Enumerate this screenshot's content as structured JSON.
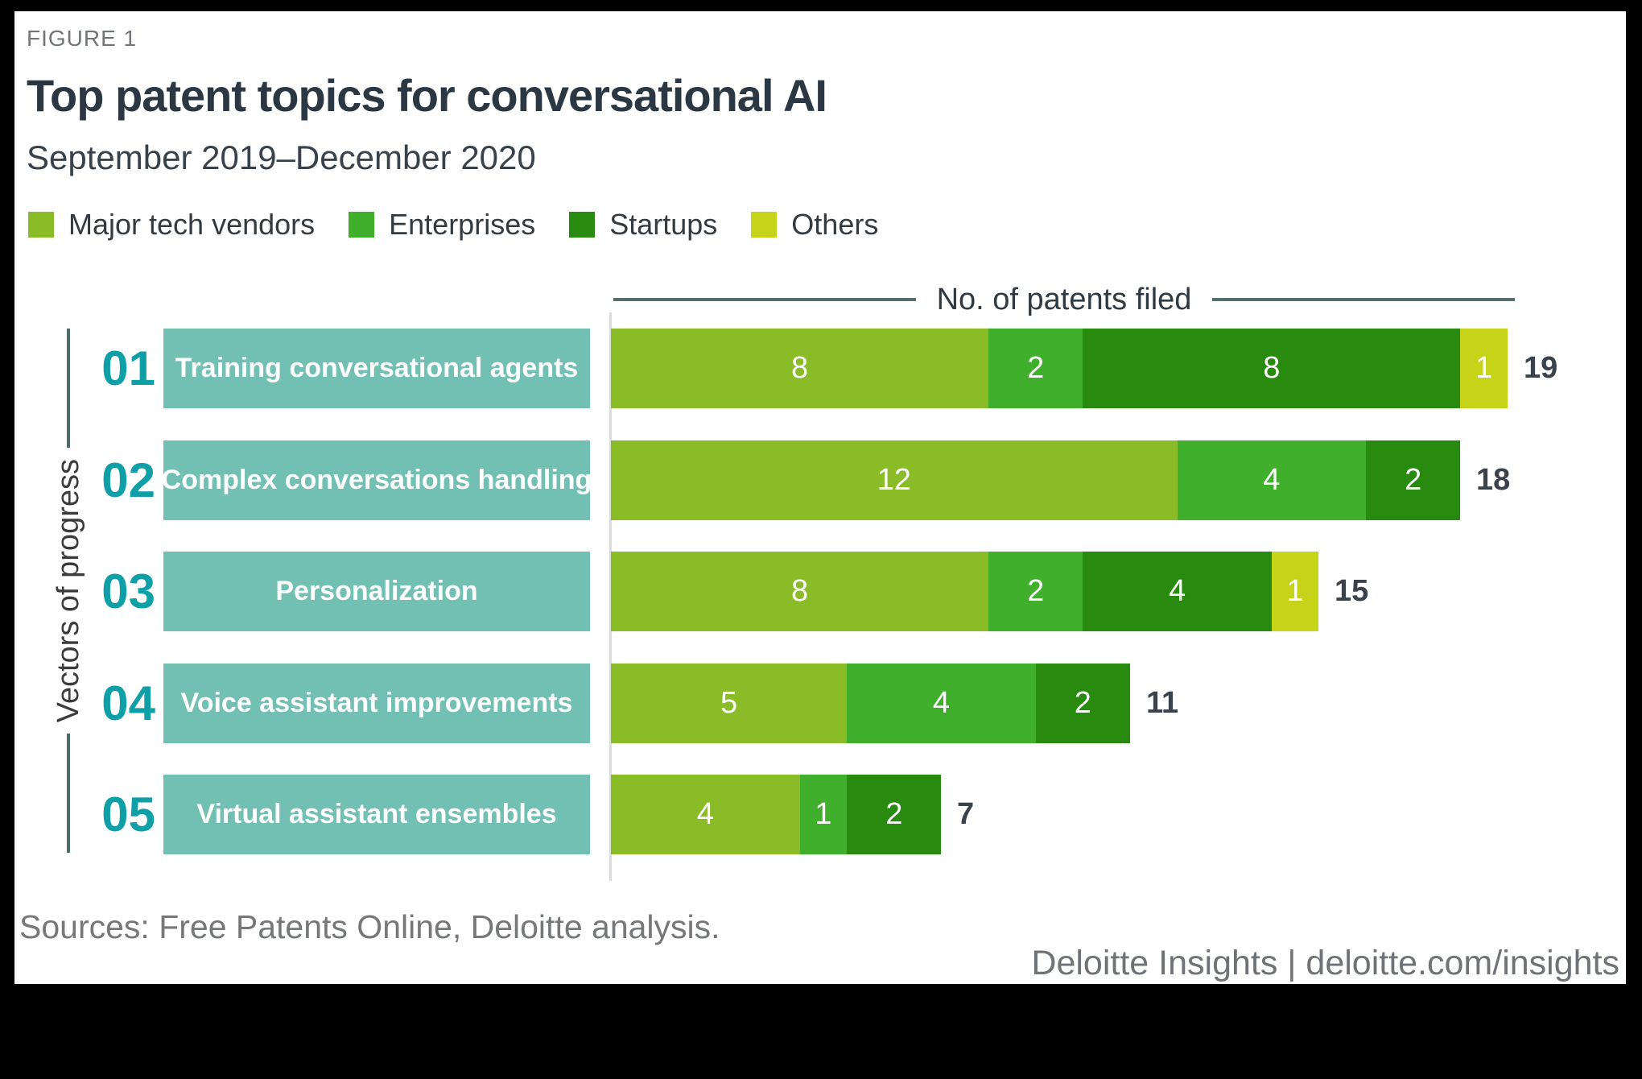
{
  "header": {
    "figure_label": "FIGURE 1",
    "title": "Top patent topics for conversational AI",
    "subtitle": "September 2019–December 2020"
  },
  "colors": {
    "major_tech_vendors": "#89bc27",
    "enterprises": "#3faf2c",
    "startups": "#288a0e",
    "others": "#c5d418",
    "category_box_teal": "#71c0b3",
    "rank_number_teal": "#0e9fa7",
    "rail_line": "#4e6c6a",
    "title_text": "#2b3843"
  },
  "chart_data": {
    "type": "bar",
    "orientation": "horizontal",
    "stacked": true,
    "axis_header": "No. of patents filed",
    "ylabel": "Vectors of progress",
    "legend": [
      {
        "label": "Major tech vendors",
        "color": "#89bc27"
      },
      {
        "label": "Enterprises",
        "color": "#3faf2c"
      },
      {
        "label": "Startups",
        "color": "#288a0e"
      },
      {
        "label": "Others",
        "color": "#c5d418"
      }
    ],
    "categories": [
      {
        "rank": "01",
        "label": "Training conversational agents"
      },
      {
        "rank": "02",
        "label": "Complex conversations handling"
      },
      {
        "rank": "03",
        "label": "Personalization"
      },
      {
        "rank": "04",
        "label": "Voice assistant improvements"
      },
      {
        "rank": "05",
        "label": "Virtual assistant ensembles"
      }
    ],
    "series": [
      {
        "name": "Major tech vendors",
        "color": "#89bc27",
        "values": [
          8,
          12,
          8,
          5,
          4
        ]
      },
      {
        "name": "Enterprises",
        "color": "#3faf2c",
        "values": [
          2,
          4,
          2,
          4,
          1
        ]
      },
      {
        "name": "Startups",
        "color": "#288a0e",
        "values": [
          8,
          2,
          4,
          2,
          2
        ]
      },
      {
        "name": "Others",
        "color": "#c5d418",
        "values": [
          1,
          0,
          1,
          0,
          0
        ]
      }
    ],
    "totals": [
      19,
      18,
      15,
      11,
      7
    ],
    "xlim": [
      0,
      19
    ],
    "grid": false,
    "legend_position": "top-left"
  },
  "footer": {
    "sources": "Sources: Free Patents Online, Deloitte analysis.",
    "brand": "Deloitte Insights | deloitte.com/insights"
  }
}
